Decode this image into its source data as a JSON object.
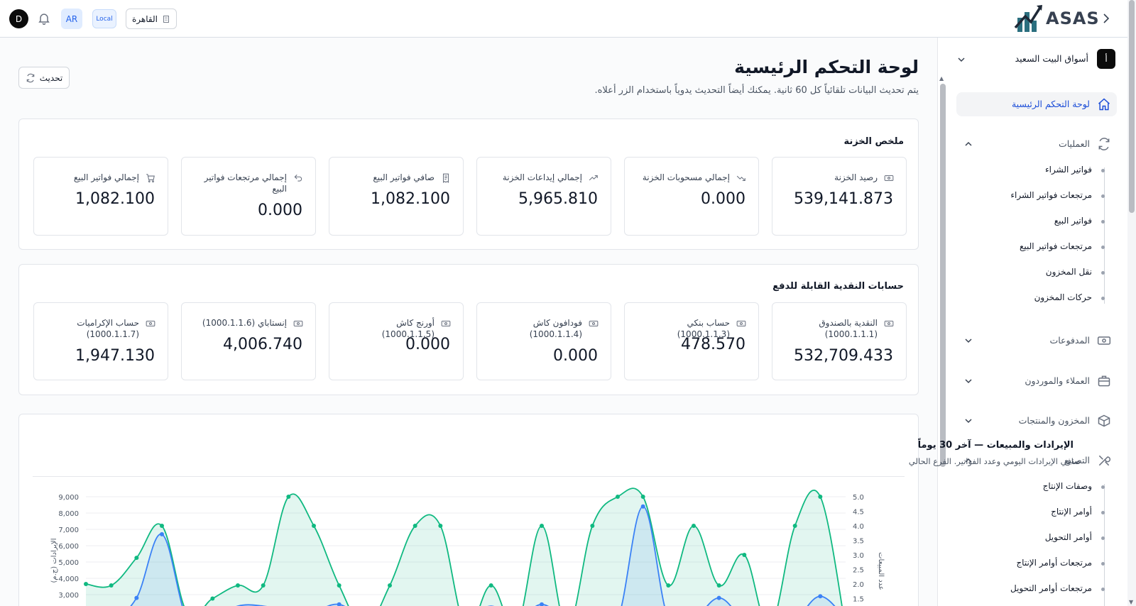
{
  "header": {
    "user_initial": "D",
    "lang": "AR",
    "env_badge": "Local",
    "branch": "القاهرة",
    "brand": "ASAS"
  },
  "sidebar": {
    "company_initial": "أ",
    "company_name": "أسواق البيت السعيد",
    "items": [
      {
        "label": "لوحة التحكم الرئيسية",
        "icon": "home-icon",
        "active": true
      },
      {
        "label": "العمليات",
        "icon": "refresh-icon",
        "expanded": true,
        "children": [
          "فواتير الشراء",
          "مرتجعات فواتير الشراء",
          "فواتير البيع",
          "مرتجعات فواتير البيع",
          "نقل المخزون",
          "حركات المخزون"
        ]
      },
      {
        "label": "المدفوعات",
        "icon": "banknote-icon",
        "expanded": false
      },
      {
        "label": "العملاء والموردون",
        "icon": "briefcase-icon",
        "expanded": false
      },
      {
        "label": "المخزون والمنتجات",
        "icon": "box-icon",
        "expanded": false
      },
      {
        "label": "التصنيع",
        "icon": "tools-icon",
        "expanded": true,
        "children": [
          "وصفات الإنتاج",
          "أوامر الإنتاج",
          "أوامر التحويل",
          "مرتجعات أوامر الإنتاج",
          "مرتجعات أوامر التحويل"
        ]
      }
    ]
  },
  "main": {
    "title": "لوحة التحكم الرئيسية",
    "subtitle": "يتم تحديث البيانات تلقائياً كل 60 ثانية. يمكنك أيضاً التحديث يدوياً باستخدام الزر أعلاه.",
    "refresh_label": "تحديث",
    "treasury": {
      "title": "ملخص الخزنة",
      "cards": [
        {
          "label": "رصيد الخزنة",
          "value": "539,141.873",
          "icon": "banknote-icon"
        },
        {
          "label": "إجمالي مسحوبات الخزنة",
          "value": "0.000",
          "icon": "trending-down-icon"
        },
        {
          "label": "إجمالي إيداعات الخزنة",
          "value": "5,965.810",
          "icon": "trending-up-icon"
        },
        {
          "label": "صافي فواتير البيع",
          "value": "1,082.100",
          "icon": "receipt-icon"
        },
        {
          "label": "إجمالي مرتجعات فواتير البيع",
          "value": "0.000",
          "icon": "undo-icon"
        },
        {
          "label": "إجمالي فواتير البيع",
          "value": "1,082.100",
          "icon": "cart-icon"
        }
      ]
    },
    "cash_accounts": {
      "title": "حسابات النقدية القابلة للدفع",
      "cards": [
        {
          "label": "النقدية بالصندوق (1000.1.1.1)",
          "value": "532,709.433",
          "icon": "banknote-icon"
        },
        {
          "label": "حساب بنكي (1000.1.1.3)",
          "value": "478.570",
          "icon": "banknote-icon"
        },
        {
          "label": "فودافون كاش (1000.1.1.4)",
          "value": "0.000",
          "icon": "banknote-icon"
        },
        {
          "label": "أورنج كاش (1000.1.1.5)",
          "value": "0.000",
          "icon": "banknote-icon"
        },
        {
          "label": "إنستاباي (1000.1.1.6)",
          "value": "4,006.740",
          "icon": "banknote-icon"
        },
        {
          "label": "حساب الإكراميات (1000.1.1.7)",
          "value": "1,947.130",
          "icon": "banknote-icon"
        }
      ]
    }
  },
  "chart_data": {
    "type": "area",
    "title": "الإيرادات والمبيعات — آخر 30 يوماً",
    "subtitle": "صافي الإيرادات اليومي وعدد الفواتير. الفرع الحالي",
    "ylabel": "الإيرادات (ج.م)",
    "y2label": "عدد المبيعات",
    "ylim_visible": [
      3000,
      9000
    ],
    "y_ticks": [
      "9,000",
      "8,000",
      "7,000",
      "6,000",
      "5,000",
      "4,000",
      "3,000"
    ],
    "y2_ticks": [
      "5.0",
      "4.5",
      "4.0",
      "3.5",
      "3.0",
      "2.5",
      "2.0",
      "1.5"
    ],
    "series": [
      {
        "name": "",
        "axis": "right",
        "color": "#10b981",
        "values": [
          2.0,
          1.95,
          2.9,
          4.0,
          1.0,
          1.5,
          1.95,
          1.95,
          5.0,
          4.0,
          1.95,
          0.5,
          1.95,
          4.0,
          4.0,
          0.5,
          1.95,
          0.5,
          4.0,
          0.5,
          4.0,
          5.0,
          5.0,
          1.95,
          4.0,
          1.95,
          3.0,
          0.5,
          4.0,
          5.0,
          0.5
        ]
      },
      {
        "name": "",
        "axis": "left",
        "color": "#3b82f6",
        "values": [
          1500,
          1500,
          2800,
          6700,
          1500,
          1500,
          2300,
          2300,
          2000,
          2000,
          2400,
          1500,
          1500,
          1500,
          1500,
          1500,
          2300,
          1500,
          2400,
          1500,
          1500,
          1500,
          8400,
          1500,
          1500,
          2800,
          1500,
          1500,
          1500,
          2900,
          1500
        ]
      }
    ]
  }
}
